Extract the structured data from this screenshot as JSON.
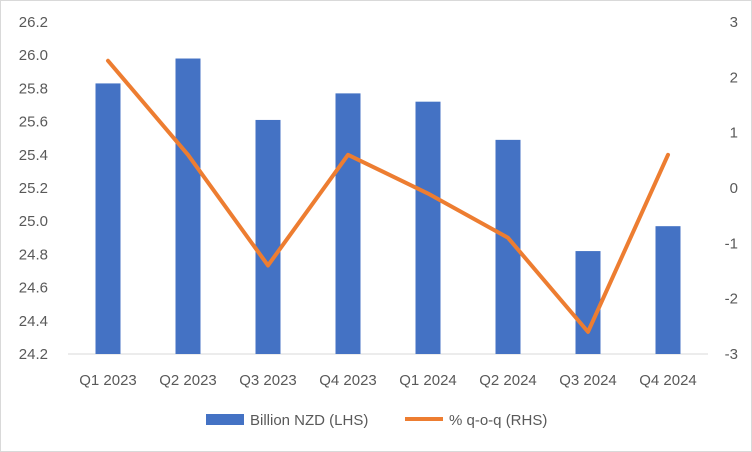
{
  "chart_data": {
    "type": "bar",
    "categories": [
      "Q1 2023",
      "Q2 2023",
      "Q3 2023",
      "Q4 2023",
      "Q1 2024",
      "Q2 2024",
      "Q3 2024",
      "Q4 2024"
    ],
    "series": [
      {
        "name": "Billion NZD (LHS)",
        "type": "bar",
        "axis": "left",
        "color": "#4472c4",
        "values": [
          25.83,
          25.98,
          25.61,
          25.77,
          25.72,
          25.49,
          24.82,
          24.97
        ]
      },
      {
        "name": "% q-o-q (RHS)",
        "type": "line",
        "axis": "right",
        "color": "#ed7d31",
        "values": [
          2.3,
          0.6,
          -1.4,
          0.6,
          -0.1,
          -0.9,
          -2.6,
          0.6
        ]
      }
    ],
    "y_left": {
      "min": 24.2,
      "max": 26.2,
      "ticks": [
        "24.2",
        "24.4",
        "24.6",
        "24.8",
        "25.0",
        "25.2",
        "25.4",
        "25.6",
        "25.8",
        "26.0",
        "26.2"
      ]
    },
    "y_right": {
      "min": -3,
      "max": 3,
      "ticks": [
        "-3",
        "-2",
        "-1",
        "0",
        "1",
        "2",
        "3"
      ]
    },
    "grid": false,
    "legend_position": "bottom"
  }
}
